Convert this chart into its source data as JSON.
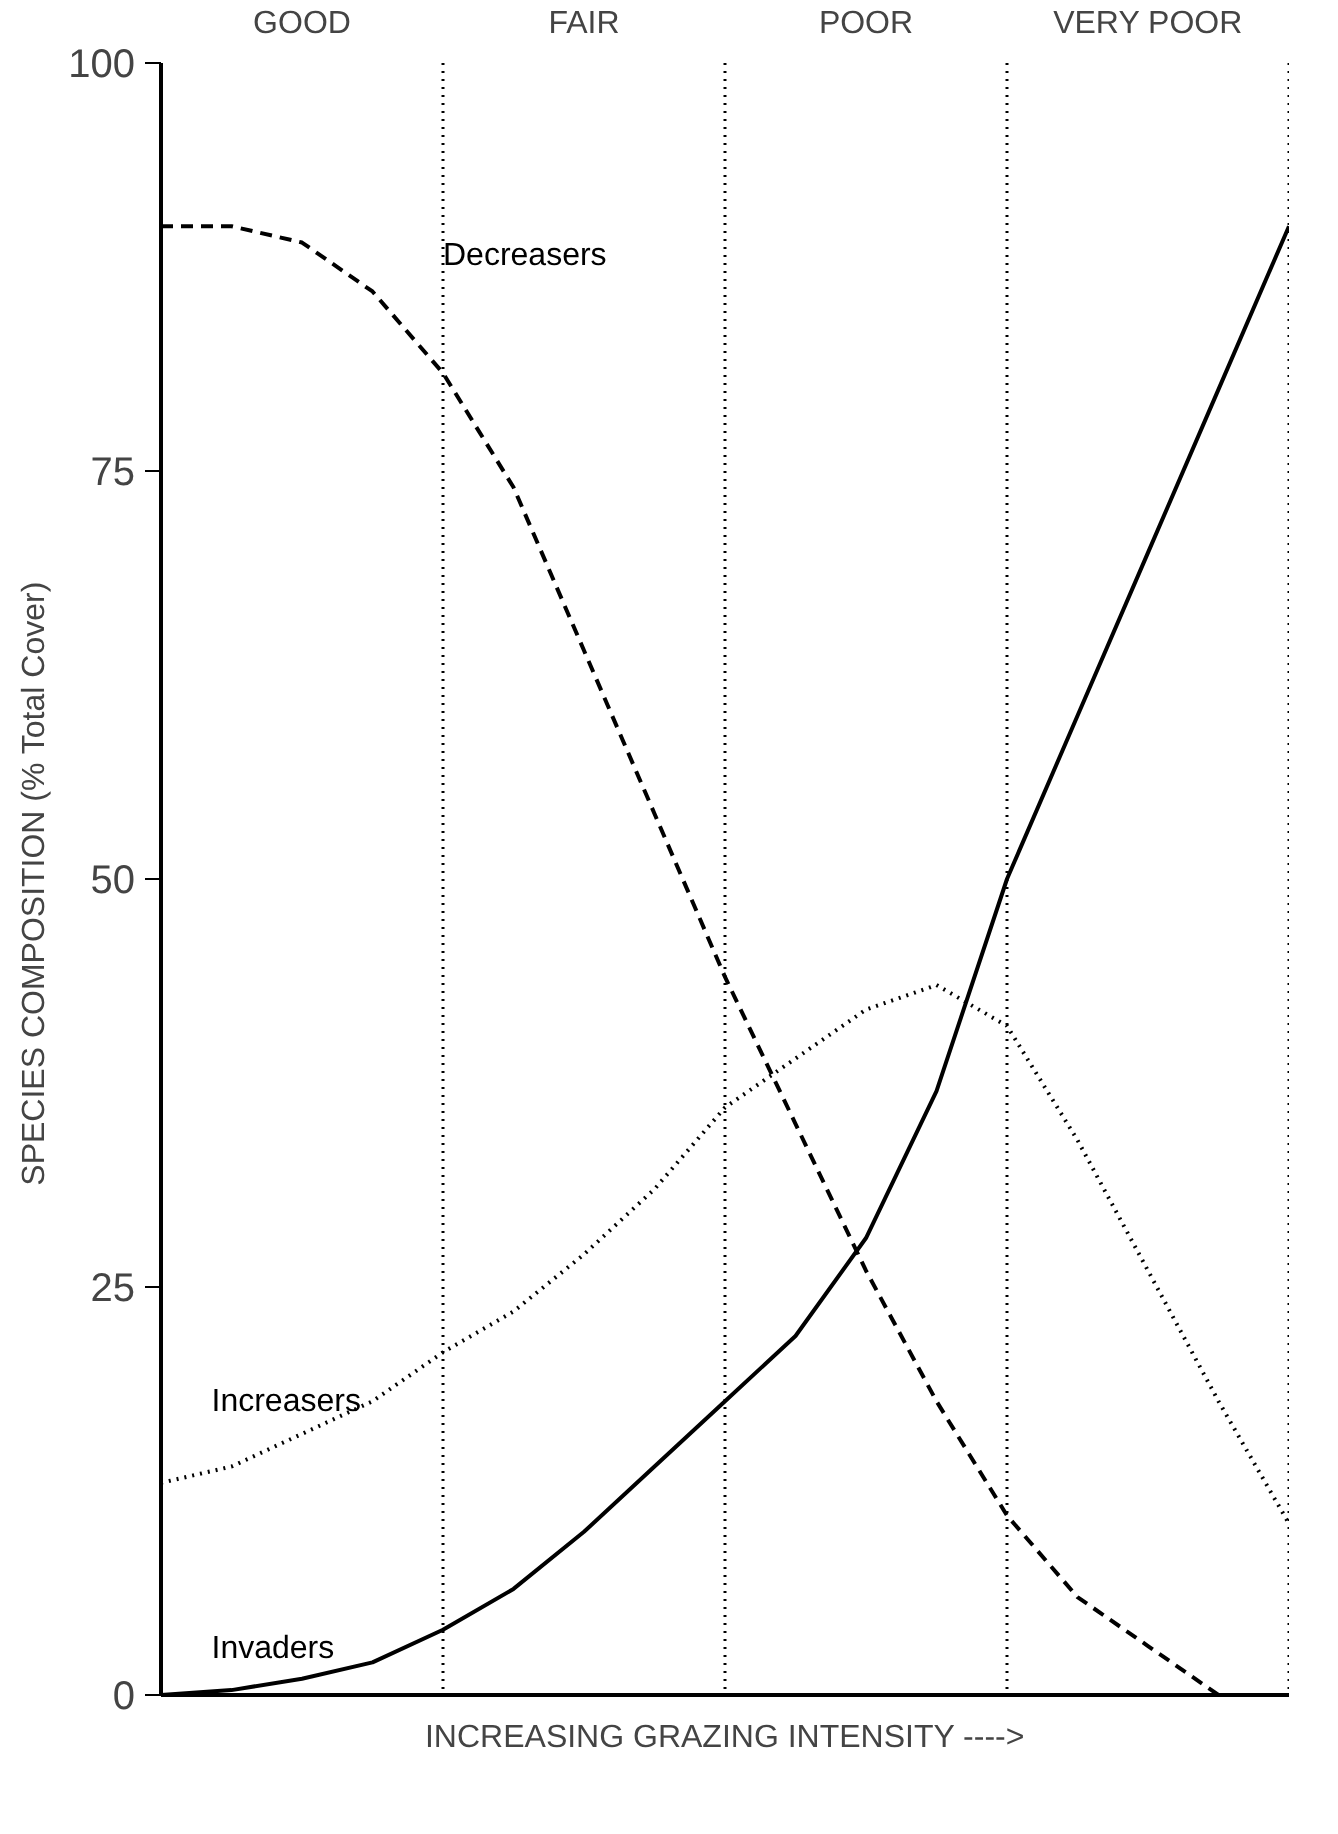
{
  "chart_data": {
    "type": "line",
    "xlabel": "INCREASING GRAZING INTENSITY ---->",
    "ylabel": "SPECIES COMPOSITION  (% Total Cover)",
    "categories": [
      null,
      null,
      null,
      null,
      null,
      null,
      null,
      null,
      null,
      null,
      null,
      null,
      null,
      null,
      null,
      null,
      null
    ],
    "ylim": [
      0,
      100
    ],
    "yticks": [
      0,
      25,
      50,
      75,
      100
    ],
    "grid": "x",
    "marker": "none",
    "series": [
      {
        "name": "Decreasers",
        "color": "#000000",
        "line_style": "dashed",
        "values": [
          90,
          90,
          89,
          86,
          81,
          74,
          64,
          54,
          44,
          35,
          26,
          18,
          11,
          6,
          3,
          0,
          null
        ]
      },
      {
        "name": "Increasers",
        "color": "#000000",
        "line_style": "dotted",
        "values": [
          13,
          14,
          16,
          18,
          21,
          23.5,
          27,
          31,
          36,
          39,
          42,
          43.5,
          41,
          34,
          26,
          18,
          10.5
        ]
      },
      {
        "name": "Invaders",
        "color": "#000000",
        "line_style": "solid",
        "values": [
          0,
          0.3,
          1,
          2,
          4,
          6.5,
          10,
          14,
          18,
          22,
          28,
          37,
          50,
          60,
          70,
          80,
          90
        ]
      }
    ],
    "annotations": [
      "GOOD",
      "FAIR",
      "POOR",
      "VERY POOR"
    ]
  }
}
